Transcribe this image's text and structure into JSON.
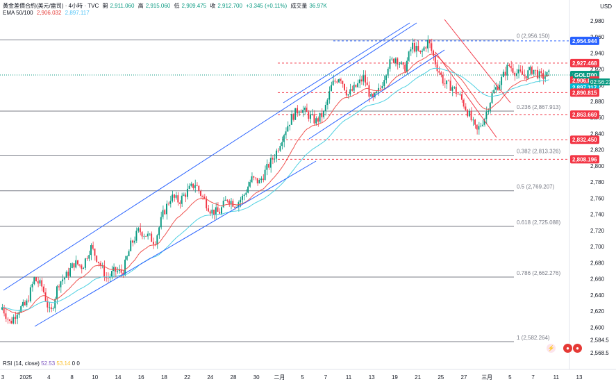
{
  "header": {
    "symbol_title": "黃金差價合約(美元/盎司) · 4小時 · TVC",
    "open_label": "開",
    "open": "2,911.060",
    "high_label": "高",
    "high": "2,915.060",
    "low_label": "低",
    "low": "2,909.475",
    "close_label": "收",
    "close": "2,912.700",
    "change": "+3.345 (+0.11%)",
    "volume_label": "成交量",
    "volume": "36.97K",
    "ema_label": "EMA 50/100",
    "ema50": "2,906.032",
    "ema100": "2,897.117"
  },
  "rsi": {
    "label": "RSI (14, close)",
    "v1": "52.53",
    "v2": "53.14",
    "v3": "0",
    "v4": "0"
  },
  "currency": "USD",
  "icons": [
    "lightning-icon",
    "us-flag-event-icon",
    "us-flag-event-icon"
  ],
  "colors": {
    "up": "#089981",
    "down": "#f23645",
    "ema50": "#ef5350",
    "ema100": "#4dd0e1",
    "channel": "#2962ff"
  },
  "chart_data": {
    "type": "candlestick",
    "symbol": "GOLD",
    "ylim": [
      2565,
      2985
    ],
    "y_ticks": [
      2980,
      2960,
      2940,
      2920,
      2900,
      2880,
      2860,
      2840,
      2820,
      2800,
      2780,
      2760,
      2740,
      2720,
      2700,
      2680,
      2660,
      2640,
      2620,
      2600,
      2584.5,
      2568.5
    ],
    "x_ticks": [
      "3",
      "2025",
      "4",
      "8",
      "10",
      "14",
      "16",
      "18",
      "22",
      "24",
      "28",
      "30",
      "二月",
      "5",
      "7",
      "11",
      "13",
      "19",
      "21",
      "25",
      "27",
      "三月",
      "5",
      "7",
      "11",
      "13"
    ],
    "ohlc_anchor_closes": [
      2625,
      2605,
      2622,
      2628,
      2660,
      2650,
      2615,
      2655,
      2664,
      2680,
      2675,
      2700,
      2682,
      2660,
      2670,
      2668,
      2702,
      2720,
      2714,
      2706,
      2740,
      2762,
      2756,
      2768,
      2778,
      2760,
      2744,
      2742,
      2760,
      2752,
      2762,
      2784,
      2780,
      2798,
      2815,
      2840,
      2860,
      2872,
      2864,
      2855,
      2865,
      2900,
      2912,
      2888,
      2898,
      2910,
      2880,
      2895,
      2925,
      2935,
      2918,
      2950,
      2938,
      2955,
      2925,
      2902,
      2898,
      2885,
      2865,
      2842,
      2860,
      2890,
      2905,
      2925,
      2915,
      2912,
      2920,
      2910,
      2913
    ],
    "last_price": 2912.7,
    "countdown": "02:56:23",
    "price_badges": [
      {
        "label": "2,954.944",
        "value": 2954.944,
        "color": "#2962ff"
      },
      {
        "label": "2,927.468",
        "value": 2927.468,
        "color": "#f23645"
      },
      {
        "label": "2,912.700",
        "value": 2912.7,
        "color": "#089981"
      },
      {
        "label": "2,906.032",
        "value": 2906.032,
        "color": "#f23645"
      },
      {
        "label": "2,897.117",
        "value": 2897.117,
        "color": "#00bcd4"
      },
      {
        "label": "2,890.815",
        "value": 2890.815,
        "color": "#f23645"
      },
      {
        "label": "2,863.669",
        "value": 2863.669,
        "color": "#f23645"
      },
      {
        "label": "2,832.450",
        "value": 2832.45,
        "color": "#f23645"
      },
      {
        "label": "2,808.196",
        "value": 2808.196,
        "color": "#f23645"
      }
    ],
    "fibonacci": [
      {
        "label": "0 (2,956.150)",
        "value": 2956.15
      },
      {
        "label": "0.236 (2,867.913)",
        "value": 2867.913
      },
      {
        "label": "0.382 (2,813.326)",
        "value": 2813.326
      },
      {
        "label": "0.5 (2,769.207)",
        "value": 2769.207
      },
      {
        "label": "0.618 (2,725.088)",
        "value": 2725.088
      },
      {
        "label": "0.786 (2,662.276)",
        "value": 2662.276
      },
      {
        "label": "1 (2,582.264)",
        "value": 2582.264
      }
    ],
    "dashed_levels": [
      2927.468,
      2890.815,
      2863.669,
      2832.45,
      2808.196
    ],
    "grid": false
  }
}
